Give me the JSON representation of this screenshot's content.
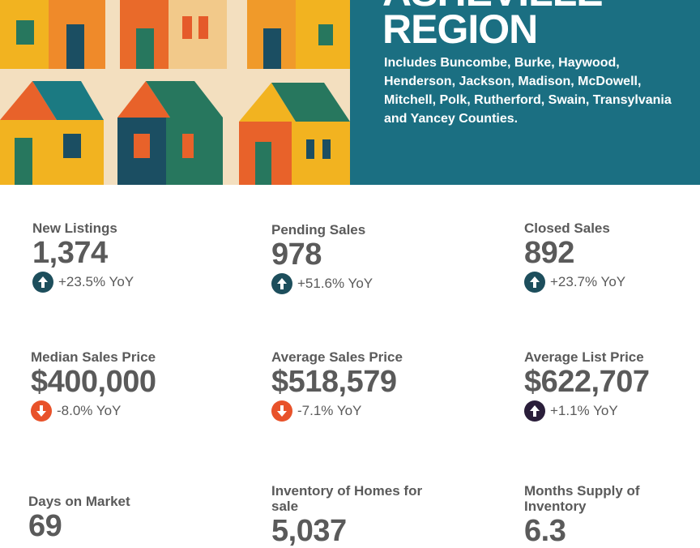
{
  "header": {
    "title_line1": "ASHEVILLE",
    "title_line2": "REGION",
    "description": "Includes Buncombe, Burke, Haywood, Henderson, Jackson, Madison, McDowell, Mitchell, Polk, Rutherford, Swain, Transylvania and Yancey Counties."
  },
  "colors": {
    "hero_bg": "#1b6f82",
    "up": "#1d4e5c",
    "down": "#e8522a",
    "up_alt": "#2a1e3a",
    "text": "#5a5a5a"
  },
  "stats": [
    {
      "label": "New Listings",
      "value": "1,374",
      "change": "+23.5% YoY",
      "icon": "arrow-up-icon"
    },
    {
      "label": "Pending Sales",
      "value": "978",
      "change": "+51.6% YoY",
      "icon": "arrow-up-icon"
    },
    {
      "label": "Closed Sales",
      "value": "892",
      "change": "+23.7% YoY",
      "icon": "arrow-up-icon"
    },
    {
      "label": "Median Sales Price",
      "value": "$400,000",
      "change": "-8.0% YoY",
      "icon": "arrow-down-icon"
    },
    {
      "label": "Average Sales Price",
      "value": "$518,579",
      "change": "-7.1% YoY",
      "icon": "arrow-down-icon"
    },
    {
      "label": "Average List Price",
      "value": "$622,707",
      "change": "+1.1% YoY",
      "icon": "arrow-up-icon"
    },
    {
      "label": "Days on Market",
      "value": "69"
    },
    {
      "label": "Inventory of Homes for sale",
      "value": "5,037"
    },
    {
      "label": "Months Supply of Inventory",
      "value": "6.3"
    }
  ]
}
